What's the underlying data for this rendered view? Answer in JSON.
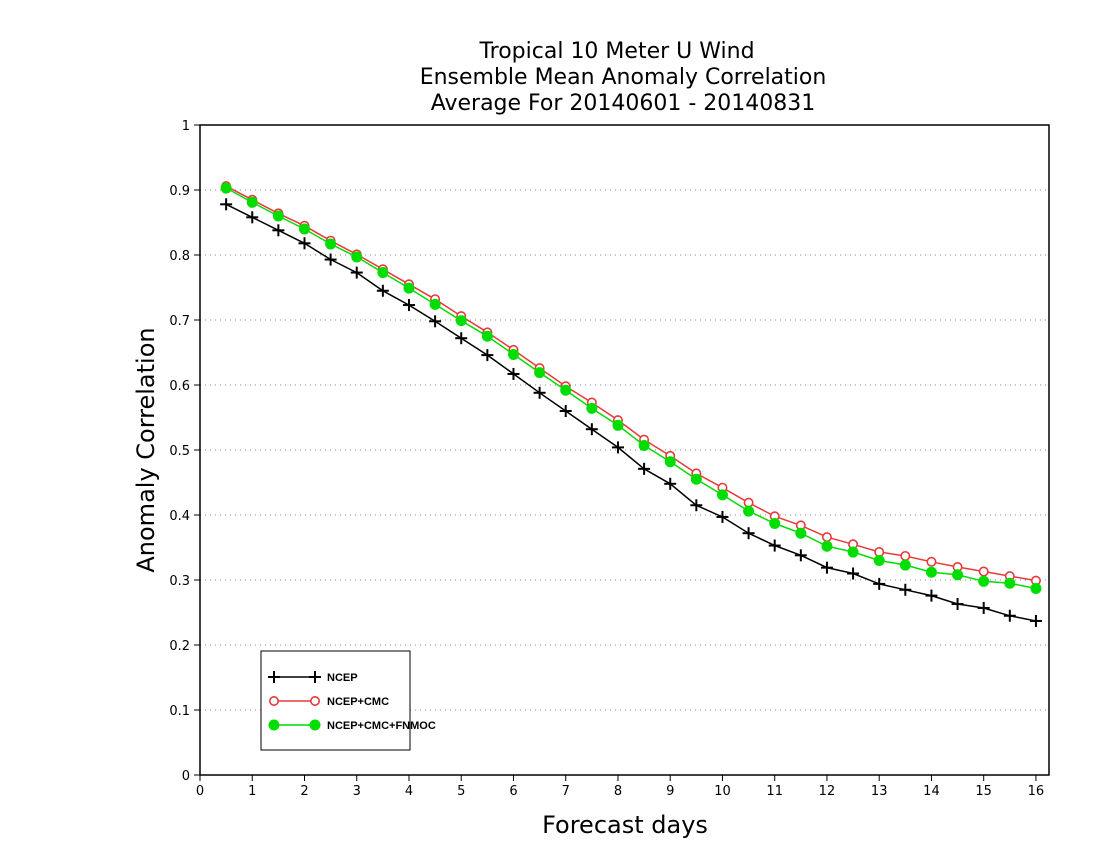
{
  "chart_data": {
    "type": "line",
    "title": [
      "Tropical 10 Meter U Wind",
      "Ensemble Mean Anomaly Correlation",
      "Average For 20140601 - 20140831"
    ],
    "xlabel": "Forecast days",
    "ylabel": "Anomaly Correlation",
    "xlim": [
      0,
      16.25
    ],
    "ylim": [
      0,
      1
    ],
    "x_ticks": [
      0,
      1,
      2,
      3,
      4,
      5,
      6,
      7,
      8,
      9,
      10,
      11,
      12,
      13,
      14,
      15,
      16
    ],
    "y_ticks": [
      0,
      0.1,
      0.2,
      0.3,
      0.4,
      0.5,
      0.6,
      0.7,
      0.8,
      0.9,
      1
    ],
    "y_tick_labels": [
      "0",
      "0.1",
      "0.2",
      "0.3",
      "0.4",
      "0.5",
      "0.6",
      "0.7",
      "0.8",
      "0.9",
      "1"
    ],
    "grid": "horizontal dotted",
    "legend_position": "bottom-left",
    "x": [
      0.5,
      1,
      1.5,
      2,
      2.5,
      3,
      3.5,
      4,
      4.5,
      5,
      5.5,
      6,
      6.5,
      7,
      7.5,
      8,
      8.5,
      9,
      9.5,
      10,
      10.5,
      11,
      11.5,
      12,
      12.5,
      13,
      13.5,
      14,
      14.5,
      15,
      15.5,
      16
    ],
    "series": [
      {
        "name": "NCEP",
        "color": "#000000",
        "marker": "plus",
        "values": [
          0.878,
          0.858,
          0.838,
          0.818,
          0.793,
          0.773,
          0.745,
          0.723,
          0.698,
          0.672,
          0.646,
          0.617,
          0.588,
          0.56,
          0.532,
          0.504,
          0.471,
          0.448,
          0.415,
          0.397,
          0.372,
          0.353,
          0.338,
          0.319,
          0.31,
          0.294,
          0.285,
          0.276,
          0.263,
          0.257,
          0.245,
          0.237
        ]
      },
      {
        "name": "NCEP+CMC",
        "color": "#e8393a",
        "marker": "open-circle",
        "values": [
          0.906,
          0.885,
          0.864,
          0.845,
          0.822,
          0.801,
          0.778,
          0.755,
          0.732,
          0.706,
          0.681,
          0.654,
          0.626,
          0.598,
          0.573,
          0.546,
          0.516,
          0.491,
          0.464,
          0.442,
          0.419,
          0.398,
          0.384,
          0.366,
          0.355,
          0.343,
          0.337,
          0.328,
          0.32,
          0.313,
          0.306,
          0.299
        ]
      },
      {
        "name": "NCEP+CMC+FNMOC",
        "color": "#00dd00",
        "marker": "filled-circle",
        "values": [
          0.903,
          0.881,
          0.86,
          0.84,
          0.817,
          0.797,
          0.773,
          0.749,
          0.724,
          0.699,
          0.675,
          0.647,
          0.619,
          0.592,
          0.564,
          0.538,
          0.507,
          0.482,
          0.455,
          0.431,
          0.406,
          0.387,
          0.372,
          0.352,
          0.343,
          0.33,
          0.323,
          0.312,
          0.308,
          0.298,
          0.295,
          0.287
        ]
      }
    ]
  }
}
